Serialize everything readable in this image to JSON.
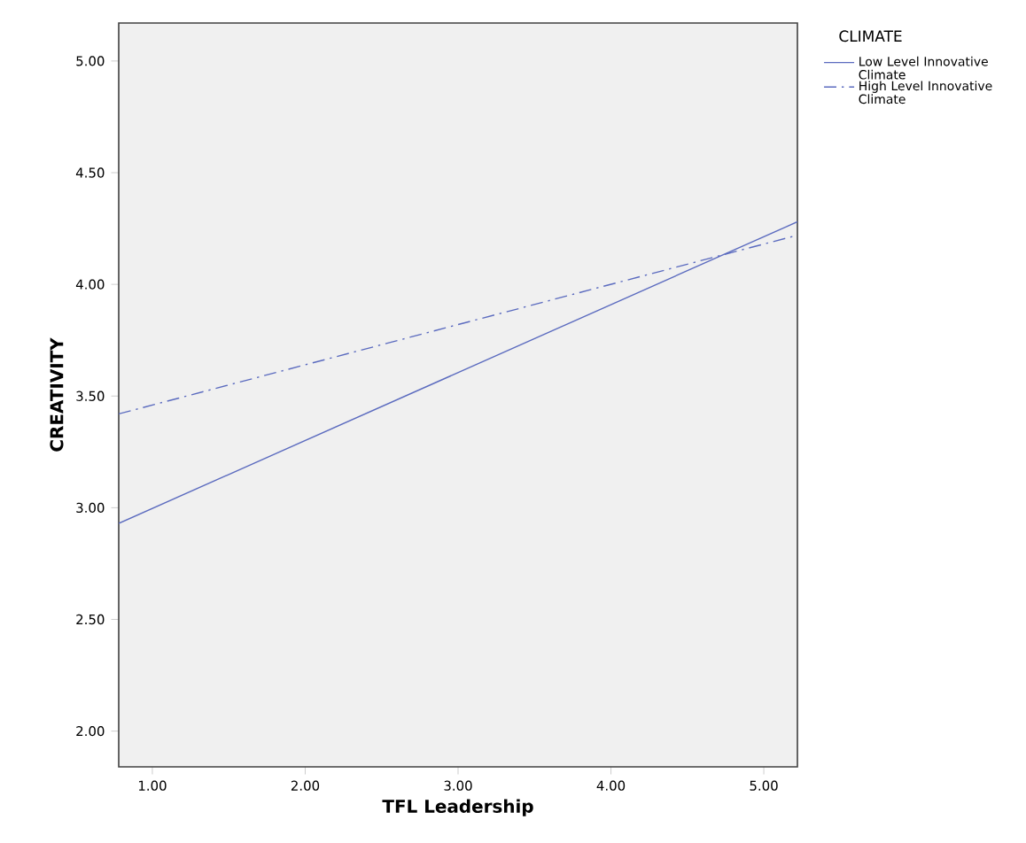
{
  "chart_data": {
    "type": "line",
    "xlabel": "TFL Leadership",
    "ylabel": "CREATIVITY",
    "legend_title": "CLIMATE",
    "x": [
      0.78,
      5.22
    ],
    "series": [
      {
        "name": "Low Level Innovative Climate",
        "color": "#5b6bbf",
        "values": [
          2.93,
          4.28
        ],
        "line_style": "solid"
      },
      {
        "name": "High Level Innovative Climate",
        "color": "#5b6bbf",
        "values": [
          3.42,
          4.22
        ],
        "line_style": "dashdot"
      }
    ],
    "xlim": [
      0.78,
      5.22
    ],
    "ylim": [
      1.84,
      5.17
    ],
    "xticks": [
      {
        "value": 1,
        "label": "1.00"
      },
      {
        "value": 2,
        "label": "2.00"
      },
      {
        "value": 3,
        "label": "3.00"
      },
      {
        "value": 4,
        "label": "4.00"
      },
      {
        "value": 5,
        "label": "5.00"
      }
    ],
    "yticks": [
      {
        "value": 2,
        "label": "2.00"
      },
      {
        "value": 2.5,
        "label": "2.50"
      },
      {
        "value": 3,
        "label": "3.00"
      },
      {
        "value": 3.5,
        "label": "3.50"
      },
      {
        "value": 4,
        "label": "4.00"
      },
      {
        "value": 4.5,
        "label": "4.50"
      },
      {
        "value": 5,
        "label": "5.00"
      }
    ],
    "grid": false,
    "legend": "top right",
    "marker": "none"
  }
}
